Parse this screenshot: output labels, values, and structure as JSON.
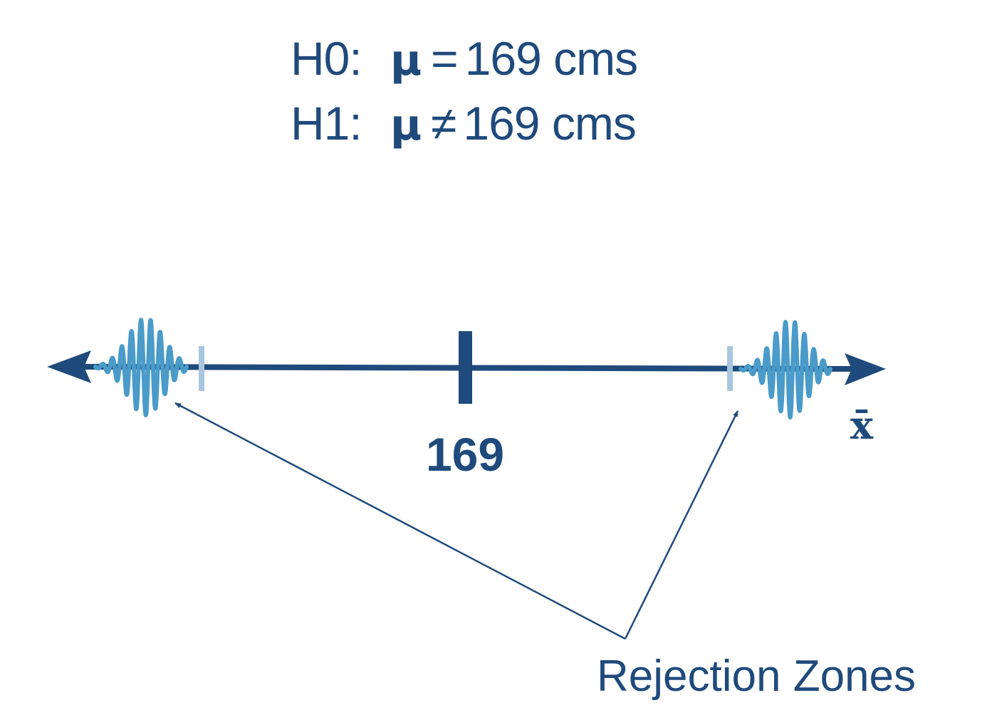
{
  "hypotheses": {
    "h0": {
      "label": "H0:",
      "symbol": "μ",
      "relation": "=",
      "value": "169 cms"
    },
    "h1": {
      "label": "H1:",
      "symbol": "μ",
      "relation": "≠",
      "value": "169 cms"
    }
  },
  "number_line": {
    "center_value": "169",
    "axis_label": "x̄",
    "annotation": "Rejection Zones"
  },
  "colors": {
    "primary": "#1f4a7c",
    "rejection": "#4a9bc9",
    "boundary": "#a9c6e0"
  }
}
